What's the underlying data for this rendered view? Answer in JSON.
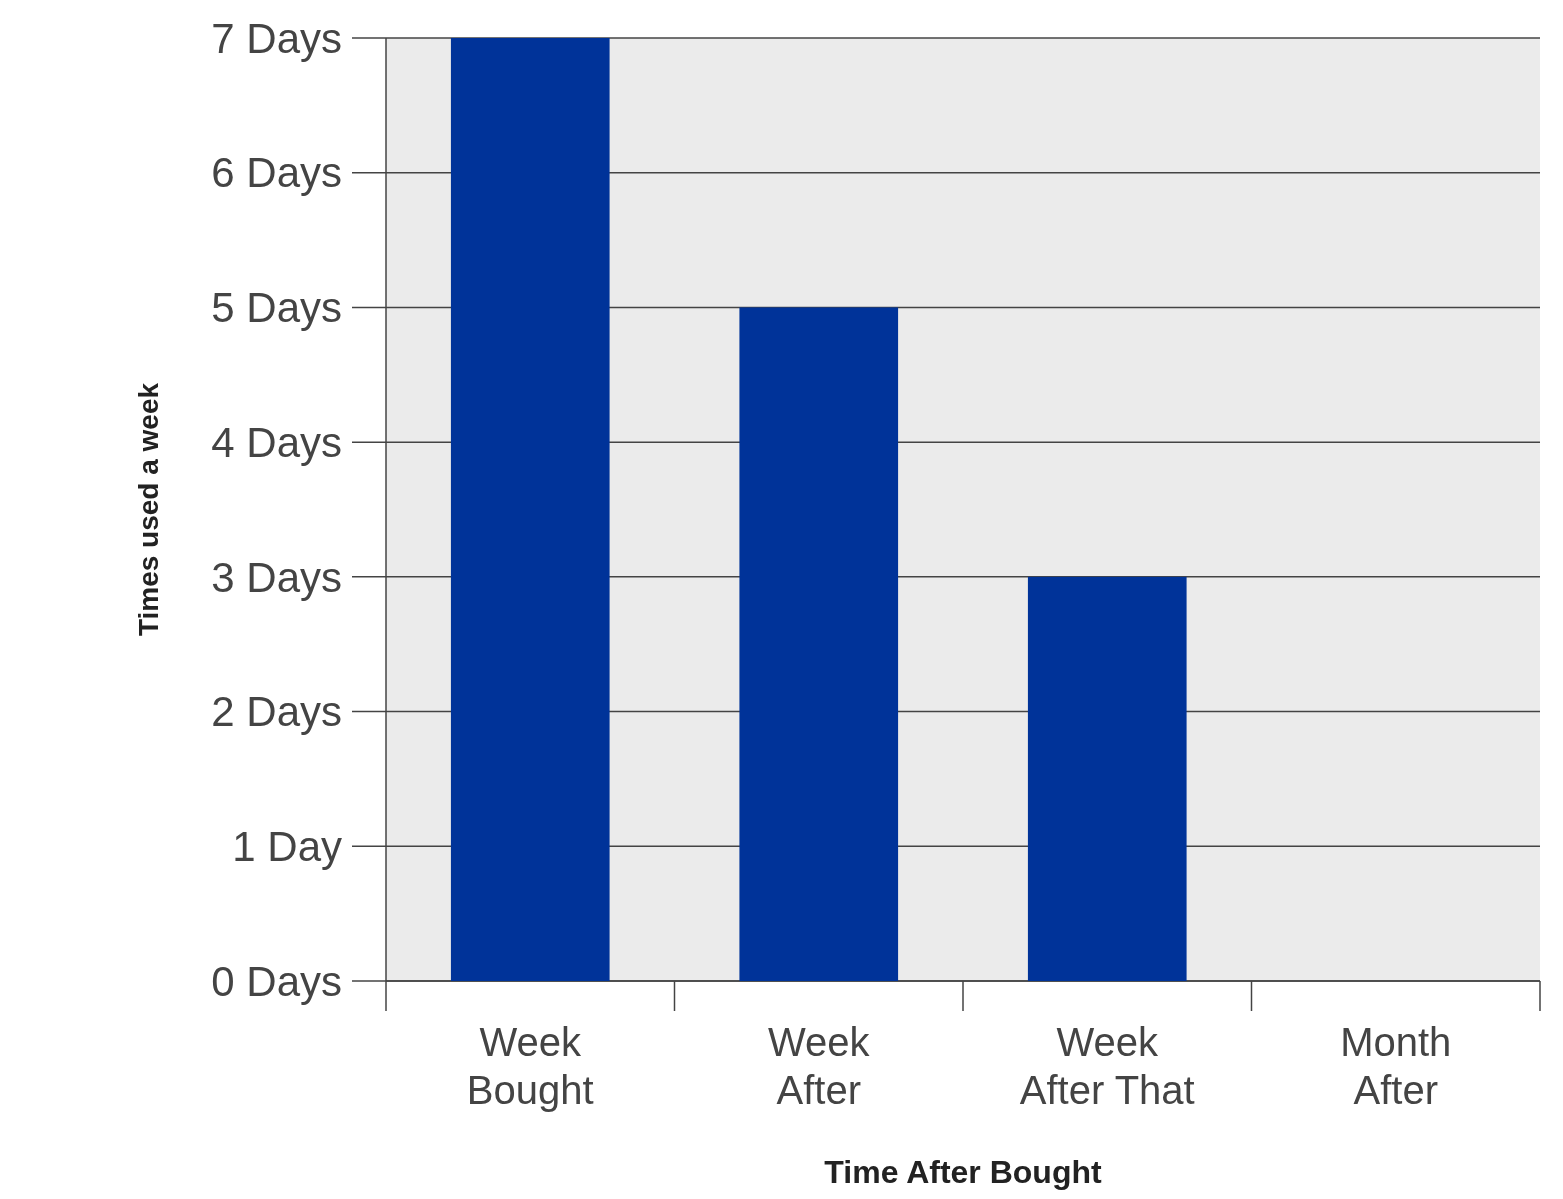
{
  "chart_data": {
    "type": "bar",
    "xlabel": "Time After Bought",
    "ylabel": "Times used a week",
    "categories": [
      "Week\nBought",
      "Week\nAfter",
      "Week\nAfter That",
      "Month\nAfter"
    ],
    "values": [
      7,
      5,
      3,
      0
    ],
    "color": "#003399",
    "ylim": [
      0,
      7
    ],
    "yticks": [
      {
        "value": 0,
        "label": "0 Days"
      },
      {
        "value": 1,
        "label": "1 Day"
      },
      {
        "value": 2,
        "label": "2 Days"
      },
      {
        "value": 3,
        "label": "3 Days"
      },
      {
        "value": 4,
        "label": "4 Days"
      },
      {
        "value": 5,
        "label": "5 Days"
      },
      {
        "value": 6,
        "label": "6 Days"
      },
      {
        "value": 7,
        "label": "7 Days"
      }
    ],
    "grid": "y"
  }
}
